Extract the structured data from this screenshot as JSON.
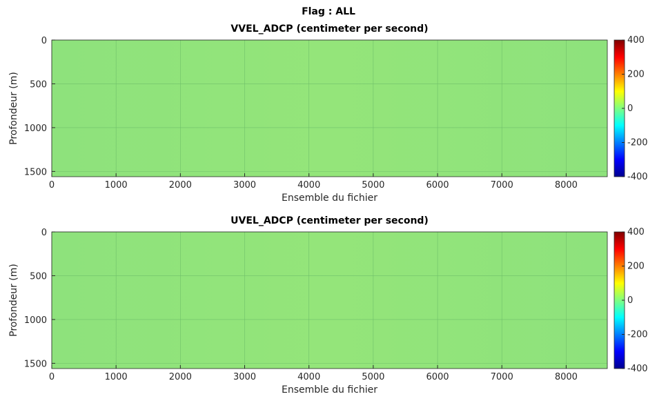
{
  "title": "Flag : ALL",
  "chart_data": [
    {
      "type": "heatmap",
      "title": "VVEL_ADCP (centimeter per second)",
      "x_label": "Ensemble du fichier",
      "y_label": "Profondeur (m)",
      "xlim": [
        0,
        8640
      ],
      "xticks": [
        0,
        1000,
        2000,
        3000,
        4000,
        5000,
        6000,
        7000,
        8000
      ],
      "ylim": [
        0,
        1560
      ],
      "yticks": [
        0,
        500,
        1000,
        1500
      ],
      "y_reversed": true,
      "grid": true,
      "colorbar": {
        "lim": [
          -400,
          400
        ],
        "ticks": [
          -400,
          -200,
          0,
          200,
          400
        ],
        "colormap": "jet"
      }
    },
    {
      "type": "heatmap",
      "title": "UVEL_ADCP (centimeter per second)",
      "x_label": "Ensemble du fichier",
      "y_label": "Profondeur (m)",
      "xlim": [
        0,
        8640
      ],
      "xticks": [
        0,
        1000,
        2000,
        3000,
        4000,
        5000,
        6000,
        7000,
        8000
      ],
      "ylim": [
        0,
        1560
      ],
      "yticks": [
        0,
        500,
        1000,
        1500
      ],
      "y_reversed": true,
      "grid": true,
      "colorbar": {
        "lim": [
          -400,
          400
        ],
        "ticks": [
          -400,
          -200,
          0,
          200,
          400
        ],
        "colormap": "jet"
      }
    }
  ]
}
